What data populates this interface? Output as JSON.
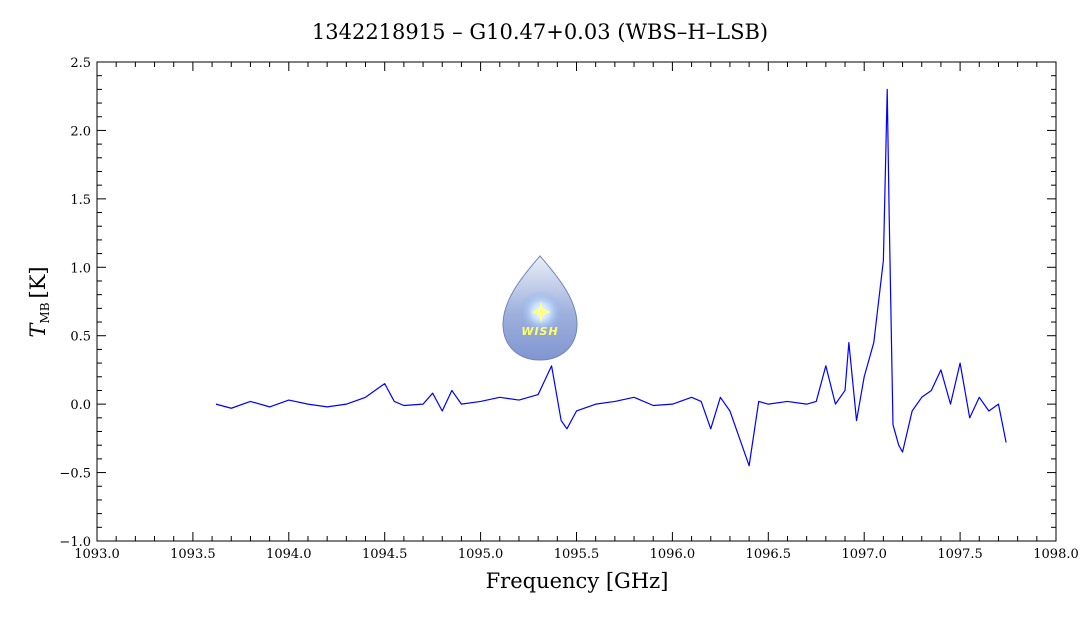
{
  "chart_data": {
    "type": "line",
    "title": "1342218915 – G10.47+0.03 (WBS–H–LSB)",
    "xlabel": "Frequency [GHz]",
    "ylabel_main": "T",
    "ylabel_sub": "MB",
    "ylabel_unit": "[K]",
    "xlim": [
      1093.0,
      1098.0
    ],
    "ylim": [
      -1.0,
      2.5
    ],
    "x_ticks": [
      1093.0,
      1093.5,
      1094.0,
      1094.5,
      1095.0,
      1095.5,
      1096.0,
      1096.5,
      1097.0,
      1097.5,
      1098.0
    ],
    "x_tick_labels": [
      "1093.0",
      "1093.5",
      "1094.0",
      "1094.5",
      "1095.0",
      "1095.5",
      "1096.0",
      "1096.5",
      "1097.0",
      "1097.5",
      "1098.0"
    ],
    "y_ticks": [
      -1.0,
      -0.5,
      0.0,
      0.5,
      1.0,
      1.5,
      2.0,
      2.5
    ],
    "y_tick_labels": [
      "−1.0",
      "−0.5",
      "0.0",
      "0.5",
      "1.0",
      "1.5",
      "2.0",
      "2.5"
    ],
    "grid": false,
    "series": [
      {
        "color": "#0000ff",
        "x": [
          1093.62,
          1093.7,
          1093.8,
          1093.9,
          1094.0,
          1094.1,
          1094.2,
          1094.3,
          1094.4,
          1094.5,
          1094.55,
          1094.6,
          1094.7,
          1094.75,
          1094.8,
          1094.85,
          1094.9,
          1095.0,
          1095.1,
          1095.2,
          1095.3,
          1095.37,
          1095.42,
          1095.45,
          1095.5,
          1095.6,
          1095.7,
          1095.8,
          1095.9,
          1096.0,
          1096.1,
          1096.15,
          1096.2,
          1096.25,
          1096.3,
          1096.35,
          1096.4,
          1096.45,
          1096.5,
          1096.6,
          1096.7,
          1096.75,
          1096.8,
          1096.85,
          1096.9,
          1096.92,
          1096.96,
          1097.0,
          1097.05,
          1097.1,
          1097.12,
          1097.13,
          1097.15,
          1097.18,
          1097.2,
          1097.25,
          1097.3,
          1097.35,
          1097.4,
          1097.45,
          1097.5,
          1097.55,
          1097.6,
          1097.65,
          1097.7,
          1097.74
        ],
        "y": [
          0.0,
          -0.03,
          0.02,
          -0.02,
          0.03,
          0.0,
          -0.02,
          0.0,
          0.05,
          0.15,
          0.02,
          -0.01,
          0.0,
          0.08,
          -0.05,
          0.1,
          0.0,
          0.02,
          0.05,
          0.03,
          0.07,
          0.28,
          -0.12,
          -0.18,
          -0.05,
          0.0,
          0.02,
          0.05,
          -0.01,
          0.0,
          0.05,
          0.02,
          -0.18,
          0.05,
          -0.05,
          -0.25,
          -0.45,
          0.02,
          0.0,
          0.02,
          0.0,
          0.02,
          0.28,
          0.0,
          0.1,
          0.45,
          -0.12,
          0.2,
          0.45,
          1.05,
          2.3,
          1.4,
          -0.15,
          -0.3,
          -0.35,
          -0.05,
          0.05,
          0.1,
          0.25,
          0.0,
          0.3,
          -0.1,
          0.05,
          -0.05,
          0.0,
          -0.28
        ]
      }
    ]
  },
  "logo": {
    "text": "WISH"
  }
}
